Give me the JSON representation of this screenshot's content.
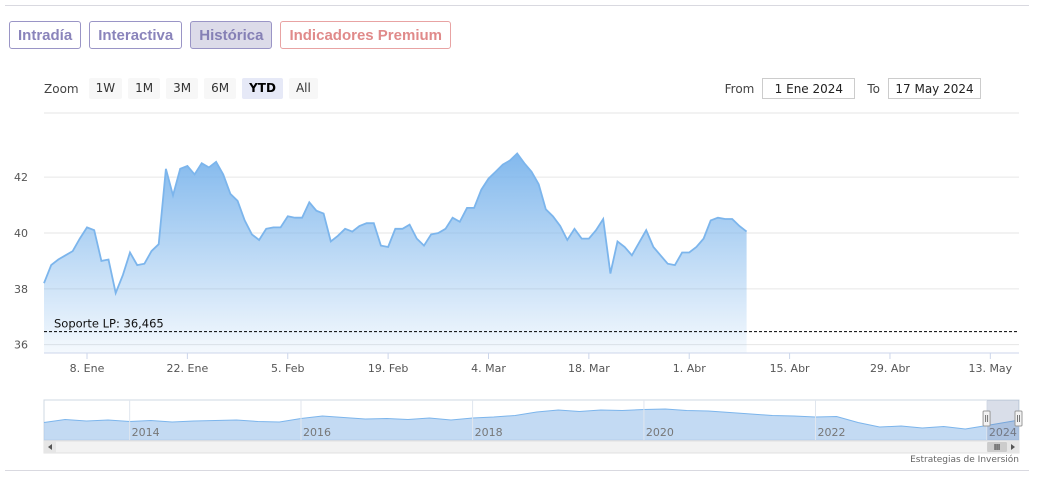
{
  "tabs": [
    {
      "label": "Intradía"
    },
    {
      "label": "Interactiva"
    },
    {
      "label": "Histórica"
    },
    {
      "label": "Indicadores Premium"
    }
  ],
  "zoom": {
    "label": "Zoom",
    "buttons": [
      "1W",
      "1M",
      "3M",
      "6M",
      "YTD",
      "All"
    ],
    "selected": "YTD"
  },
  "range": {
    "from_label": "From",
    "from_value": "1 Ene 2024",
    "to_label": "To",
    "to_value": "17 May 2024"
  },
  "credit": "Estrategias de Inversión",
  "colors": {
    "line": "#7cb5ec",
    "tab_border": "#9a95c6",
    "premium": "#e08a8a"
  },
  "chart_data": {
    "type": "area",
    "title": "",
    "xlabel": "",
    "ylabel": "",
    "ylim": [
      35.7,
      44.3
    ],
    "yticks": [
      36,
      38,
      40,
      42
    ],
    "xlim": [
      "2024-01-02",
      "2024-05-17"
    ],
    "xticks": [
      {
        "date": "2024-01-08",
        "label": "8. Ene"
      },
      {
        "date": "2024-01-22",
        "label": "22. Ene"
      },
      {
        "date": "2024-02-05",
        "label": "5. Feb"
      },
      {
        "date": "2024-02-19",
        "label": "19. Feb"
      },
      {
        "date": "2024-03-04",
        "label": "4. Mar"
      },
      {
        "date": "2024-03-18",
        "label": "18. Mar"
      },
      {
        "date": "2024-04-01",
        "label": "1. Abr"
      },
      {
        "date": "2024-04-15",
        "label": "15. Abr"
      },
      {
        "date": "2024-04-29",
        "label": "29. Abr"
      },
      {
        "date": "2024-05-13",
        "label": "13. May"
      }
    ],
    "grid": true,
    "support_line": {
      "label": "Soporte LP: 36,465",
      "value": 36.465
    },
    "series": [
      {
        "points": [
          [
            "2024-01-02",
            38.2
          ],
          [
            "2024-01-03",
            38.85
          ],
          [
            "2024-01-04",
            39.05
          ],
          [
            "2024-01-05",
            39.2
          ],
          [
            "2024-01-06",
            39.35
          ],
          [
            "2024-01-07",
            39.8
          ],
          [
            "2024-01-08",
            40.2
          ],
          [
            "2024-01-09",
            40.1
          ],
          [
            "2024-01-10",
            39.0
          ],
          [
            "2024-01-11",
            39.05
          ],
          [
            "2024-01-12",
            37.85
          ],
          [
            "2024-01-13",
            38.5
          ],
          [
            "2024-01-14",
            39.3
          ],
          [
            "2024-01-15",
            38.85
          ],
          [
            "2024-01-16",
            38.9
          ],
          [
            "2024-01-17",
            39.35
          ],
          [
            "2024-01-18",
            39.6
          ],
          [
            "2024-01-19",
            42.3
          ],
          [
            "2024-01-20",
            41.35
          ],
          [
            "2024-01-21",
            42.3
          ],
          [
            "2024-01-22",
            42.4
          ],
          [
            "2024-01-23",
            42.1
          ],
          [
            "2024-01-24",
            42.5
          ],
          [
            "2024-01-25",
            42.35
          ],
          [
            "2024-01-26",
            42.55
          ],
          [
            "2024-01-27",
            42.1
          ],
          [
            "2024-01-28",
            41.4
          ],
          [
            "2024-01-29",
            41.15
          ],
          [
            "2024-01-30",
            40.45
          ],
          [
            "2024-01-31",
            39.95
          ],
          [
            "2024-02-01",
            39.75
          ],
          [
            "2024-02-02",
            40.15
          ],
          [
            "2024-02-03",
            40.2
          ],
          [
            "2024-02-04",
            40.2
          ],
          [
            "2024-02-05",
            40.6
          ],
          [
            "2024-02-06",
            40.55
          ],
          [
            "2024-02-07",
            40.55
          ],
          [
            "2024-02-08",
            41.1
          ],
          [
            "2024-02-09",
            40.8
          ],
          [
            "2024-02-10",
            40.7
          ],
          [
            "2024-02-11",
            39.7
          ],
          [
            "2024-02-12",
            39.9
          ],
          [
            "2024-02-13",
            40.15
          ],
          [
            "2024-02-14",
            40.05
          ],
          [
            "2024-02-15",
            40.25
          ],
          [
            "2024-02-16",
            40.35
          ],
          [
            "2024-02-17",
            40.35
          ],
          [
            "2024-02-18",
            39.55
          ],
          [
            "2024-02-19",
            39.5
          ],
          [
            "2024-02-20",
            40.15
          ],
          [
            "2024-02-21",
            40.15
          ],
          [
            "2024-02-22",
            40.3
          ],
          [
            "2024-02-23",
            39.8
          ],
          [
            "2024-02-24",
            39.55
          ],
          [
            "2024-02-25",
            39.95
          ],
          [
            "2024-02-26",
            40.0
          ],
          [
            "2024-02-27",
            40.15
          ],
          [
            "2024-02-28",
            40.55
          ],
          [
            "2024-02-29",
            40.4
          ],
          [
            "2024-03-01",
            40.9
          ],
          [
            "2024-03-02",
            40.9
          ],
          [
            "2024-03-03",
            41.55
          ],
          [
            "2024-03-04",
            41.95
          ],
          [
            "2024-03-05",
            42.2
          ],
          [
            "2024-03-06",
            42.45
          ],
          [
            "2024-03-07",
            42.6
          ],
          [
            "2024-03-08",
            42.85
          ],
          [
            "2024-03-09",
            42.5
          ],
          [
            "2024-03-10",
            42.2
          ],
          [
            "2024-03-11",
            41.75
          ],
          [
            "2024-03-12",
            40.85
          ],
          [
            "2024-03-13",
            40.6
          ],
          [
            "2024-03-14",
            40.25
          ],
          [
            "2024-03-15",
            39.75
          ],
          [
            "2024-03-16",
            40.15
          ],
          [
            "2024-03-17",
            39.8
          ],
          [
            "2024-03-18",
            39.8
          ],
          [
            "2024-03-19",
            40.1
          ],
          [
            "2024-03-20",
            40.5
          ],
          [
            "2024-03-21",
            38.55
          ],
          [
            "2024-03-22",
            39.7
          ],
          [
            "2024-03-23",
            39.5
          ],
          [
            "2024-03-24",
            39.2
          ],
          [
            "2024-03-25",
            39.65
          ],
          [
            "2024-03-26",
            40.1
          ],
          [
            "2024-03-27",
            39.5
          ],
          [
            "2024-03-28",
            39.2
          ],
          [
            "2024-03-29",
            38.9
          ],
          [
            "2024-03-30",
            38.85
          ],
          [
            "2024-03-31",
            39.3
          ],
          [
            "2024-04-01",
            39.3
          ],
          [
            "2024-04-02",
            39.5
          ],
          [
            "2024-04-03",
            39.8
          ],
          [
            "2024-04-04",
            40.45
          ],
          [
            "2024-04-05",
            40.55
          ],
          [
            "2024-04-06",
            40.5
          ],
          [
            "2024-04-07",
            40.5
          ],
          [
            "2024-04-08",
            40.25
          ],
          [
            "2024-04-09",
            40.05
          ]
        ]
      }
    ],
    "navigator": {
      "year_labels": [
        "2014",
        "2016",
        "2018",
        "2020",
        "2022",
        "2024"
      ],
      "series": [
        [
          "2013-01-01",
          39.5
        ],
        [
          "2013-04-01",
          40.1
        ],
        [
          "2013-07-01",
          39.8
        ],
        [
          "2013-10-01",
          40.0
        ],
        [
          "2014-01-01",
          39.7
        ],
        [
          "2014-04-01",
          39.9
        ],
        [
          "2014-07-01",
          39.6
        ],
        [
          "2014-10-01",
          39.8
        ],
        [
          "2015-01-01",
          39.9
        ],
        [
          "2015-04-01",
          40.0
        ],
        [
          "2015-07-01",
          39.7
        ],
        [
          "2015-10-01",
          39.6
        ],
        [
          "2016-01-01",
          40.3
        ],
        [
          "2016-04-01",
          40.8
        ],
        [
          "2016-07-01",
          40.5
        ],
        [
          "2016-10-01",
          40.2
        ],
        [
          "2017-01-01",
          40.3
        ],
        [
          "2017-04-01",
          40.1
        ],
        [
          "2017-07-01",
          40.4
        ],
        [
          "2017-10-01",
          40.0
        ],
        [
          "2018-01-01",
          40.4
        ],
        [
          "2018-04-01",
          40.6
        ],
        [
          "2018-07-01",
          40.9
        ],
        [
          "2018-10-01",
          41.6
        ],
        [
          "2019-01-01",
          42.0
        ],
        [
          "2019-04-01",
          41.7
        ],
        [
          "2019-07-01",
          42.0
        ],
        [
          "2019-10-01",
          41.9
        ],
        [
          "2020-01-01",
          42.1
        ],
        [
          "2020-04-01",
          42.2
        ],
        [
          "2020-07-01",
          41.9
        ],
        [
          "2020-10-01",
          41.8
        ],
        [
          "2021-01-01",
          41.5
        ],
        [
          "2021-04-01",
          41.2
        ],
        [
          "2021-07-01",
          40.9
        ],
        [
          "2021-10-01",
          40.8
        ],
        [
          "2022-01-01",
          40.6
        ],
        [
          "2022-04-01",
          40.7
        ],
        [
          "2022-07-01",
          39.5
        ],
        [
          "2022-10-01",
          38.6
        ],
        [
          "2023-01-01",
          38.8
        ],
        [
          "2023-04-01",
          38.4
        ],
        [
          "2023-07-01",
          38.7
        ],
        [
          "2023-10-01",
          38.2
        ],
        [
          "2024-01-01",
          38.9
        ],
        [
          "2024-05-17",
          40.0
        ]
      ]
    }
  }
}
